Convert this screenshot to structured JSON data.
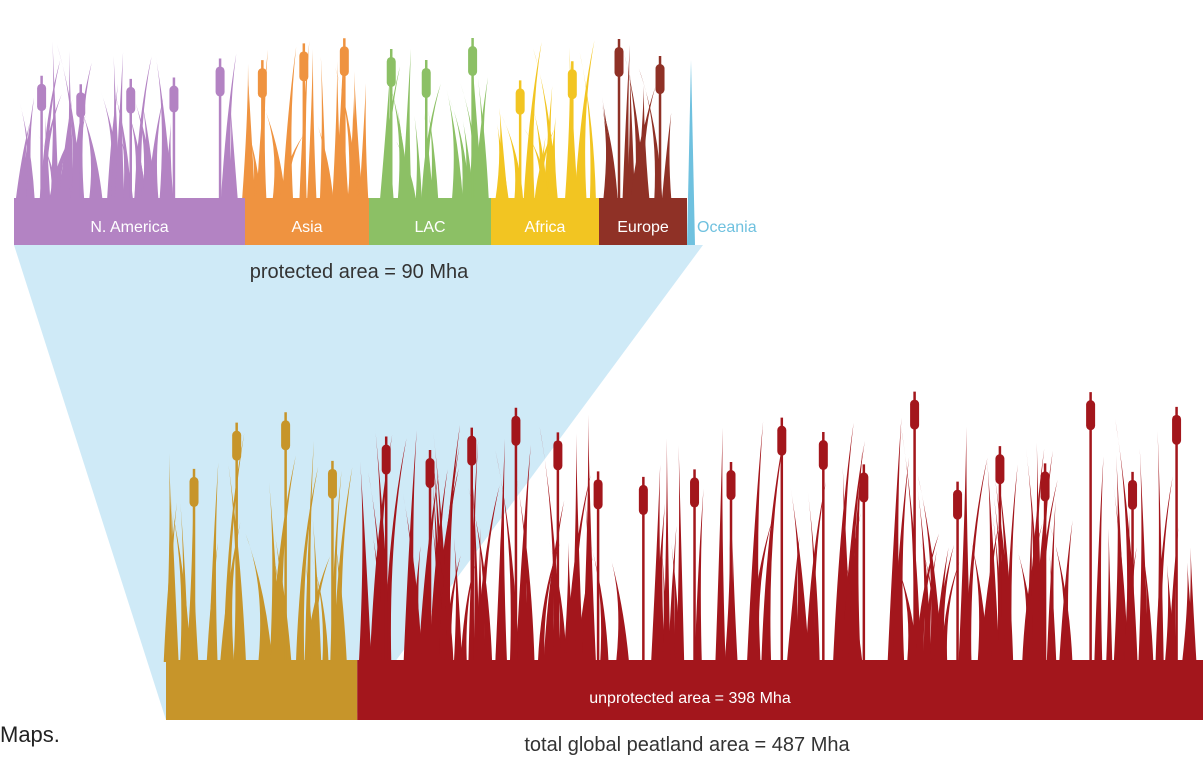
{
  "chart_data": {
    "type": "bar",
    "protected": {
      "label": "protected area = 90 Mha",
      "value": 90,
      "unit": "Mha",
      "categories": [
        "N. America",
        "Asia",
        "LAC",
        "Africa",
        "Europe",
        "Oceania"
      ],
      "colors": [
        "#b383c3",
        "#ef9340",
        "#8cc065",
        "#f2c522",
        "#8f3126",
        "#6fc1df"
      ]
    },
    "unprotected": {
      "label": "unprotected area = 398 Mha",
      "value": 398,
      "unit": "Mha",
      "color": "#a3161c"
    },
    "protected_total_color": "#c7952a",
    "zoom_color": "#cfeaf7",
    "total": {
      "label": "total global peatland area = 487 Mha",
      "value": 487,
      "unit": "Mha"
    }
  },
  "page": {
    "side_caption": "Maps."
  }
}
